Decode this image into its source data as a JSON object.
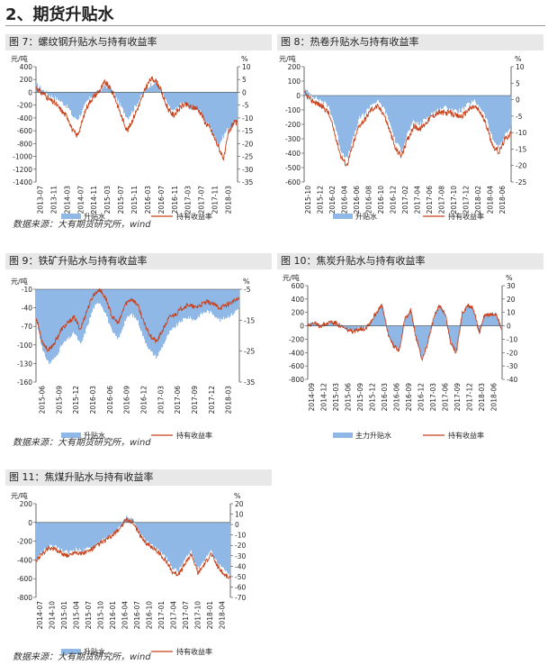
{
  "page_title": "2、期货升贴水",
  "source_text": "数据来源：大有期货研究所，wind",
  "colors": {
    "bar": "#8fb8e6",
    "line": "#c8401a",
    "header_bg": "#e8e8e8"
  },
  "chart_data": [
    {
      "id": "c7",
      "title": "图 7：螺纹钢升贴水与持有收益率",
      "type": "bar+line",
      "left_unit": "元/吨",
      "right_unit": "%",
      "left_ticks": [
        400,
        200,
        0,
        -200,
        -400,
        -600,
        -800,
        -1000,
        -1200,
        -1400
      ],
      "right_ticks": [
        10,
        5,
        0,
        -5,
        -10,
        -15,
        -20,
        -25,
        -30,
        -35
      ],
      "x_labels": [
        "2013-07",
        "2014-03",
        "2014-11",
        "2015-07",
        "2016-03",
        "2016-11",
        "2017-07",
        "2018-03"
      ],
      "x_ticks": [
        "2013-07",
        "2013-11",
        "2014-03",
        "2014-07",
        "2014-11",
        "2015-03",
        "2015-07",
        "2015-11",
        "2016-03",
        "2016-07",
        "2016-11",
        "2017-03",
        "2017-07",
        "2017-11",
        "2018-03"
      ],
      "bar_name": "升贴水",
      "line_name": "持有收益率",
      "bars": [
        120,
        60,
        0,
        -50,
        -80,
        -120,
        -180,
        -240,
        -380,
        -420,
        -300,
        -150,
        -60,
        -20,
        40,
        100,
        80,
        -20,
        -150,
        -280,
        -400,
        -300,
        -180,
        -60,
        40,
        120,
        160,
        60,
        -80,
        -220,
        -300,
        -240,
        -160,
        -200,
        -260,
        -240,
        -320,
        -460,
        -520,
        -700,
        -820,
        -680,
        -560,
        -520,
        -480
      ],
      "line": [
        2,
        0,
        -1,
        -3,
        -4,
        -6,
        -8,
        -10,
        -15,
        -17,
        -12,
        -6,
        -3,
        -1,
        1,
        4,
        2,
        -1,
        -6,
        -11,
        -15,
        -11,
        -7,
        -3,
        2,
        5,
        5,
        2,
        -3,
        -7,
        -9,
        -7,
        -5,
        -5,
        -6,
        -6,
        -8,
        -12,
        -14,
        -18,
        -22,
        -26,
        -16,
        -12,
        -12
      ]
    },
    {
      "id": "c8",
      "title": "图 8：热卷升贴水与持有收益率",
      "type": "bar+line",
      "left_unit": "元/吨",
      "right_unit": "%",
      "left_ticks": [
        200,
        100,
        0,
        -100,
        -200,
        -300,
        -400,
        -500,
        -600
      ],
      "right_ticks": [
        10,
        5,
        0,
        -5,
        -10,
        -15,
        -20,
        -25
      ],
      "x_labels": [
        "2015-10",
        "2016-02",
        "2016-06",
        "2016-10",
        "2017-02",
        "2017-06",
        "2017-10",
        "2018-02",
        "2018-06"
      ],
      "x_ticks": [
        "2015-10",
        "2015-12",
        "2016-02",
        "2016-04",
        "2016-06",
        "2016-08",
        "2016-10",
        "2016-12",
        "2017-02",
        "2017-04",
        "2017-06",
        "2017-08",
        "2017-10",
        "2017-12",
        "2018-02",
        "2018-04",
        "2018-06"
      ],
      "bar_name": "升贴水",
      "line_name": "持有收益率",
      "bars": [
        40,
        10,
        -20,
        -40,
        -80,
        -200,
        -380,
        -440,
        -300,
        -160,
        -120,
        -60,
        -40,
        -80,
        -180,
        -320,
        -380,
        -260,
        -180,
        -200,
        -160,
        -120,
        -100,
        -80,
        -90,
        -110,
        -100,
        -60,
        -40,
        -80,
        -160,
        -300,
        -360,
        -280,
        -220
      ],
      "line": [
        2,
        0,
        -1,
        -2,
        -4,
        -10,
        -17,
        -20,
        -14,
        -8,
        -6,
        -3,
        -2,
        -4,
        -9,
        -15,
        -17,
        -12,
        -8,
        -9,
        -7,
        -5,
        -4,
        -4,
        -4,
        -5,
        -5,
        -3,
        -2,
        -4,
        -8,
        -14,
        -16,
        -12,
        -10
      ]
    },
    {
      "id": "c9",
      "title": "图 9：铁矿升贴水与持有收益率",
      "type": "bar+line",
      "left_unit": "元/吨",
      "right_unit": "%",
      "left_ticks": [
        -10,
        -40,
        -70,
        -100,
        -130,
        -160
      ],
      "right_ticks": [
        -5,
        -15,
        -25,
        -35
      ],
      "x_labels": [
        "2015-06",
        "2015-09",
        "2015-12",
        "2016-03",
        "2016-06",
        "2016-09",
        "2016-12",
        "2017-03",
        "2017-06",
        "2017-09",
        "2017-12",
        "2018-03"
      ],
      "bar_name": "升贴水",
      "line_name": "持有收益率",
      "bars": [
        -60,
        -110,
        -130,
        -120,
        -100,
        -90,
        -80,
        -100,
        -70,
        -40,
        -30,
        -50,
        -80,
        -90,
        -60,
        -50,
        -60,
        -90,
        -110,
        -120,
        -100,
        -80,
        -70,
        -60,
        -55,
        -60,
        -50,
        -45,
        -50,
        -60,
        -55,
        -50,
        -40
      ],
      "line": [
        -14,
        -22,
        -25,
        -22,
        -18,
        -16,
        -14,
        -18,
        -12,
        -7,
        -5,
        -8,
        -14,
        -16,
        -10,
        -8,
        -10,
        -16,
        -20,
        -22,
        -18,
        -14,
        -13,
        -11,
        -10,
        -11,
        -10,
        -9,
        -10,
        -11,
        -10,
        -9,
        -8
      ]
    },
    {
      "id": "c10",
      "title": "图 10：焦炭升贴水与持有收益率",
      "type": "bar+line",
      "left_unit": "元/吨",
      "right_unit": "%",
      "left_ticks": [
        600,
        400,
        200,
        0,
        -200,
        -400,
        -600,
        -800
      ],
      "right_ticks": [
        30,
        20,
        10,
        0,
        -10,
        -20,
        -30,
        -40
      ],
      "x_labels": [
        "2014-09",
        "2014-12",
        "2015-03",
        "2015-06",
        "2015-09",
        "2015-12",
        "2016-03",
        "2016-06",
        "2016-09",
        "2016-12",
        "2017-03",
        "2017-06",
        "2017-09",
        "2017-12",
        "2018-03",
        "2018-06"
      ],
      "bar_name": "主力升贴水",
      "line_name": "持有收益率",
      "bars": [
        20,
        40,
        10,
        20,
        60,
        40,
        -20,
        -60,
        -80,
        -40,
        -30,
        60,
        200,
        300,
        -100,
        -300,
        -360,
        100,
        250,
        -200,
        -500,
        -260,
        100,
        300,
        200,
        -260,
        -400,
        180,
        300,
        260,
        -100,
        180,
        150,
        180,
        -60
      ],
      "line": [
        1,
        2,
        0,
        1,
        3,
        2,
        -1,
        -3,
        -5,
        -2,
        -2,
        3,
        10,
        15,
        -5,
        -15,
        -18,
        5,
        12,
        -10,
        -25,
        -13,
        5,
        15,
        10,
        -13,
        -20,
        9,
        15,
        13,
        -5,
        9,
        8,
        9,
        -3
      ]
    },
    {
      "id": "c11",
      "title": "图 11：焦煤升贴水与持有收益率",
      "type": "bar+line",
      "left_unit": "元/吨",
      "right_unit": "%",
      "left_ticks": [
        200,
        0,
        -200,
        -400,
        -600,
        -800
      ],
      "right_ticks": [
        20,
        10,
        0,
        -10,
        -20,
        -30,
        -40,
        -50,
        -60,
        -70
      ],
      "x_labels": [
        "2014-07",
        "2014-10",
        "2015-01",
        "2015-04",
        "2015-07",
        "2015-10",
        "2016-01",
        "2016-04",
        "2016-07",
        "2016-10",
        "2017-01",
        "2017-04",
        "2017-07",
        "2017-10",
        "2018-01",
        "2018-04"
      ],
      "bar_name": "升贴水",
      "line_name": "持有收益率",
      "bars": [
        -380,
        -300,
        -240,
        -260,
        -300,
        -320,
        -280,
        -300,
        -280,
        -240,
        -200,
        -160,
        -120,
        -40,
        60,
        20,
        -120,
        -200,
        -240,
        -300,
        -360,
        -480,
        -520,
        -400,
        -300,
        -500,
        -400,
        -300,
        -420,
        -500,
        -560
      ],
      "line": [
        -35,
        -28,
        -22,
        -24,
        -28,
        -30,
        -26,
        -28,
        -26,
        -22,
        -18,
        -14,
        -10,
        -3,
        5,
        2,
        -10,
        -18,
        -22,
        -28,
        -34,
        -45,
        -48,
        -38,
        -28,
        -47,
        -38,
        -28,
        -40,
        -48,
        -52
      ]
    }
  ]
}
